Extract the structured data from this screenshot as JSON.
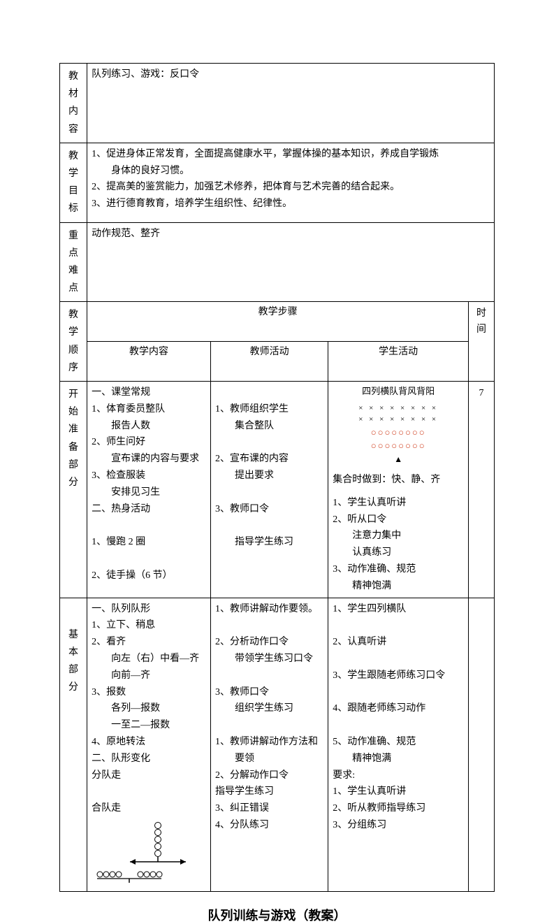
{
  "rows": {
    "material": {
      "label": "教材内容",
      "text": "队列练习、游戏：反口令"
    },
    "goal": {
      "label": "教学目标",
      "text": "1、促进身体正常发育，全面提高健康水平，掌握体操的基本知识，养成自学锻炼\n　　身体的良好习惯。\n2、提高美的鉴赏能力，加强艺术修养，把体育与艺术完善的结合起来。\n3、进行德育教育，培养学生组织性、纪律性。"
    },
    "keypoint": {
      "label": "重点难点",
      "text": "动作规范、整齐"
    }
  },
  "headers": {
    "sequence": "教学顺序",
    "steps": "教学步骤",
    "content": "教学内容",
    "teacher": "教师活动",
    "student": "学生活动",
    "time": "时间"
  },
  "section1": {
    "label": "开始准备部分",
    "time": "7",
    "content": "一、课堂常规\n1、体育委员整队\n　　报告人数\n2、师生问好\n　　宣布课的内容与要求\n3、检查服装\n　　安排见习生\n二、热身活动\n\n1、慢跑 2 圈\n\n2、徒手操（6 节）",
    "teacher": "\n1、教师组织学生\n　　集合整队\n\n2、宣布课的内容\n　　提出要求\n\n3、教师口令\n\n　　指导学生练习",
    "student_formation_title": "四列横队背风背阳",
    "student_assembly": "集合时做到：快、静、齐",
    "student_text": "1、学生认真听讲\n2、听从口令\n　　注意力集中\n　　认真练习\n3、动作准确、规范\n　　精神饱满",
    "formation": {
      "x_row": "× × × × × × × ×",
      "o_row": "○○○○○○○○",
      "x_color": "#000000",
      "o_color": "#d04020"
    }
  },
  "section2": {
    "label": "基本部分",
    "content": "一、队列队形\n1、立下、稍息\n2、看齐\n　　向左（右）中看—齐\n　　向前—齐\n3、报数\n　　各列—报数\n　　一至二—报数\n4、原地转法\n二、队形变化\n分队走\n\n合队走",
    "teacher": "1、教师讲解动作要领。\n\n2、分析动作口令\n　　带领学生练习口令\n\n3、教师口令\n　　组织学生练习\n\n1、教师讲解动作方法和\n　　要领\n2、分解动作口令\n指导学生练习\n3、纠正错误\n4、分队练习",
    "student": "1、学生四列横队\n\n2、认真听讲\n\n3、学生跟随老师练习口令\n\n4、跟随老师练习动作\n\n5、动作准确、规范\n　　精神饱满\n要求:\n1、学生认真听讲\n2、听从教师指导练习\n3、分组练习",
    "diagram": {
      "face_color": "#000000",
      "stroke": "#000000",
      "face_radius": 4
    }
  },
  "pageTitle": "队列训练与游戏（教案）"
}
